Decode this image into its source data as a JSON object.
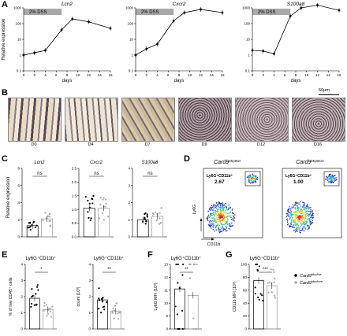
{
  "panel_letters": [
    "A",
    "B",
    "C",
    "D",
    "E",
    "F",
    "G"
  ],
  "panelA": {
    "ylabel": "Relative expression",
    "xlabel": "days",
    "dss_label": "2% DSS",
    "x_ticks": [
      "0",
      "2",
      "4",
      "6",
      "8",
      "10",
      "12",
      "14",
      "16"
    ],
    "y_ticks": [
      "0.1",
      "1",
      "10",
      "100",
      "1000"
    ]
  },
  "panelB": {
    "scalebar": "50μm",
    "days": [
      "D0",
      "D4",
      "D7",
      "D9",
      "D12",
      "D16"
    ]
  },
  "panelC": {
    "ylabel": "Relative expression",
    "ns": "ns"
  },
  "panelD": {
    "wt_title": "Card9",
    "wt_sup": "Mrp8wt",
    "ko_title": "Card9",
    "ko_sup": "Mrp8cre",
    "gate_label": "Ly6G⁺CD11b⁺",
    "wt_value": "2.67",
    "ko_value": "1.00",
    "yaxis": "Ly6G",
    "xaxis": "CD11b"
  },
  "panelE": {
    "title1": "Ly6G⁺CD11b⁺",
    "title2": "Ly6G⁺CD11b⁺",
    "ylabel1": "% of live CD45⁺ cells",
    "ylabel2": "count (10³)",
    "sig1": "*",
    "sig2": "**",
    "y1_ticks": [
      "0",
      "1",
      "2",
      "3",
      "4"
    ],
    "y2_ticks": [
      "0",
      "1",
      "2",
      "3",
      "4"
    ]
  },
  "panelF": {
    "title": "Ly6G⁺CD11b⁺",
    "ylabel": "Ly6G MFI (10³)",
    "sig": "**",
    "y_ticks": [
      "8",
      "9",
      "10",
      "11",
      "12",
      "13"
    ]
  },
  "panelG": {
    "title": "Ly6G⁺CD11b⁺",
    "ylabel": "CD11b MFI (10³)",
    "sig": "***",
    "y_ticks": [
      "0",
      "20",
      "40",
      "60",
      "80",
      "100"
    ]
  },
  "legend": {
    "wt_label": "Card9",
    "wt_sup": "Mrp8wt",
    "ko_label": "Card9",
    "ko_sup": "Mrp8cre",
    "wt_color": "#000000",
    "ko_color": "#aaaaaa"
  },
  "chart_data": [
    {
      "type": "line",
      "title": "Lcn2",
      "xlabel": "days",
      "ylabel": "Relative expression",
      "yscale": "log",
      "ylim": [
        0.1,
        1000
      ],
      "xlim": [
        0,
        16
      ],
      "x": [
        0,
        2,
        4,
        7,
        9,
        12,
        16
      ],
      "series": [
        {
          "values": [
            1,
            1.4,
            2,
            40,
            200,
            130,
            50
          ]
        }
      ]
    },
    {
      "type": "line",
      "title": "Cxcr2",
      "xlabel": "days",
      "yscale": "log",
      "ylim": [
        0.1,
        1000
      ],
      "xlim": [
        0,
        16
      ],
      "x": [
        0,
        2,
        4,
        7,
        9,
        12,
        16
      ],
      "series": [
        {
          "values": [
            1,
            2.5,
            5,
            150,
            500,
            800,
            500
          ]
        }
      ]
    },
    {
      "type": "line",
      "title": "S100a8",
      "xlabel": "days",
      "yscale": "log",
      "ylim": [
        0.1,
        1000
      ],
      "xlim": [
        0,
        16
      ],
      "x": [
        0,
        2,
        4,
        7,
        9,
        12,
        16
      ],
      "series": [
        {
          "values": [
            2,
            1.8,
            1.2,
            300,
            1000,
            1500,
            700
          ]
        }
      ]
    },
    {
      "type": "bar",
      "title": "Lcn2",
      "ylabel": "Relative expression",
      "ylim": [
        0,
        8
      ],
      "y_ticks": [
        "0",
        "2",
        "4",
        "6",
        "8"
      ],
      "categories": [
        "Card9 Mrp8wt",
        "Card9 Mrp8cre"
      ],
      "values": [
        1.3,
        2.1
      ]
    },
    {
      "type": "bar",
      "title": "Cxcr2",
      "ylim": [
        0,
        2.5
      ],
      "y_ticks": [
        "0.0",
        "0.5",
        "1.0",
        "1.5",
        "2.0",
        "2.5"
      ],
      "categories": [
        "Card9 Mrp8wt",
        "Card9 Mrp8cre"
      ],
      "values": [
        1.05,
        1.05
      ]
    },
    {
      "type": "bar",
      "title": "S100a8",
      "ylim": [
        0,
        4
      ],
      "y_ticks": [
        "0",
        "1",
        "2",
        "3",
        "4"
      ],
      "categories": [
        "Card9 Mrp8wt",
        "Card9 Mrp8cre"
      ],
      "values": [
        1.0,
        1.2
      ]
    },
    {
      "type": "bar",
      "title": "Ly6G⁺CD11b⁺",
      "ylabel": "% of live CD45⁺ cells",
      "ylim": [
        0,
        4
      ],
      "categories": [
        "Card9 Mrp8wt",
        "Card9 Mrp8cre"
      ],
      "values": [
        1.9,
        1.2
      ]
    },
    {
      "type": "bar",
      "title": "Ly6G⁺CD11b⁺",
      "ylabel": "count (10³)",
      "ylim": [
        0,
        4
      ],
      "categories": [
        "Card9 Mrp8wt",
        "Card9 Mrp8cre"
      ],
      "values": [
        1.8,
        1.1
      ]
    },
    {
      "type": "bar",
      "title": "Ly6G⁺CD11b⁺",
      "ylabel": "Ly6G MFI (10³)",
      "ylim": [
        8,
        13
      ],
      "categories": [
        "Card9 Mrp8wt",
        "Card9 Mrp8cre"
      ],
      "values": [
        11.1,
        10.6
      ]
    },
    {
      "type": "bar",
      "title": "Ly6G⁺CD11b⁺",
      "ylabel": "CD11b MFI (10³)",
      "ylim": [
        0,
        100
      ],
      "categories": [
        "Card9 Mrp8wt",
        "Card9 Mrp8cre"
      ],
      "values": [
        75,
        67
      ]
    }
  ]
}
